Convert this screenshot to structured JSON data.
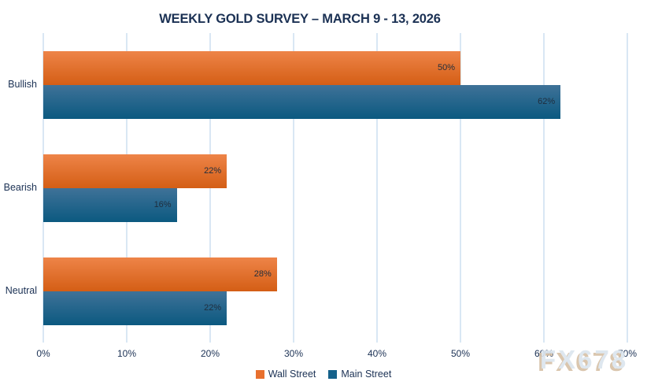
{
  "watermark": "FX678",
  "colors": {
    "title_text": "#1b3154",
    "axis_text": "#1b3154",
    "gridline": "#d9e7f4",
    "bar_label": "#1f2d3d",
    "wall_street_gradient_top": "#ee8448",
    "wall_street_gradient_bottom": "#d45e15",
    "main_street_gradient_top": "#3f7298",
    "main_street_gradient_bottom": "#0b5980",
    "watermark_fill": "#dbe5ee",
    "watermark_shadow": "#d6c0a6"
  },
  "chart_data": {
    "type": "bar",
    "orientation": "horizontal",
    "title": "WEEKLY GOLD SURVEY – MARCH 9 - 13, 2026",
    "categories": [
      "Bullish",
      "Bearish",
      "Neutral"
    ],
    "series": [
      {
        "name": "Wall Street",
        "color": "#e8702e",
        "values": [
          50,
          22,
          28
        ]
      },
      {
        "name": "Main Street",
        "color": "#15618a",
        "values": [
          62,
          16,
          22
        ]
      }
    ],
    "value_suffix": "%",
    "xlim": [
      0,
      70
    ],
    "x_ticks": [
      "0%",
      "10%",
      "20%",
      "30%",
      "40%",
      "50%",
      "60%",
      "70%"
    ],
    "grid": true,
    "legend_position": "bottom-center"
  }
}
